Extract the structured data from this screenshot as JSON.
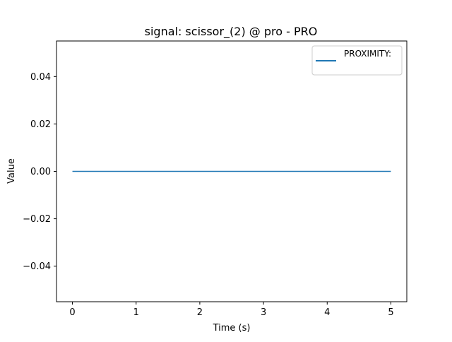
{
  "chart_data": {
    "type": "line",
    "title": "signal: scissor_(2) @ pro - PRO",
    "xlabel": "Time (s)",
    "ylabel": "Value",
    "xlim": [
      -0.25,
      5.25
    ],
    "ylim": [
      -0.055,
      0.055
    ],
    "x_ticks": [
      0,
      1,
      2,
      3,
      4,
      5
    ],
    "x_tick_labels": [
      "0",
      "1",
      "2",
      "3",
      "4",
      "5"
    ],
    "y_ticks": [
      -0.04,
      -0.02,
      0.0,
      0.02,
      0.04
    ],
    "y_tick_labels": [
      "−0.04",
      "−0.02",
      "0.00",
      "0.02",
      "0.04"
    ],
    "grid": false,
    "legend_position": "top-right",
    "series": [
      {
        "name": "PROXIMITY:",
        "color": "#1f77b4",
        "x": [
          0,
          5
        ],
        "y": [
          0.0,
          0.0
        ]
      }
    ]
  }
}
